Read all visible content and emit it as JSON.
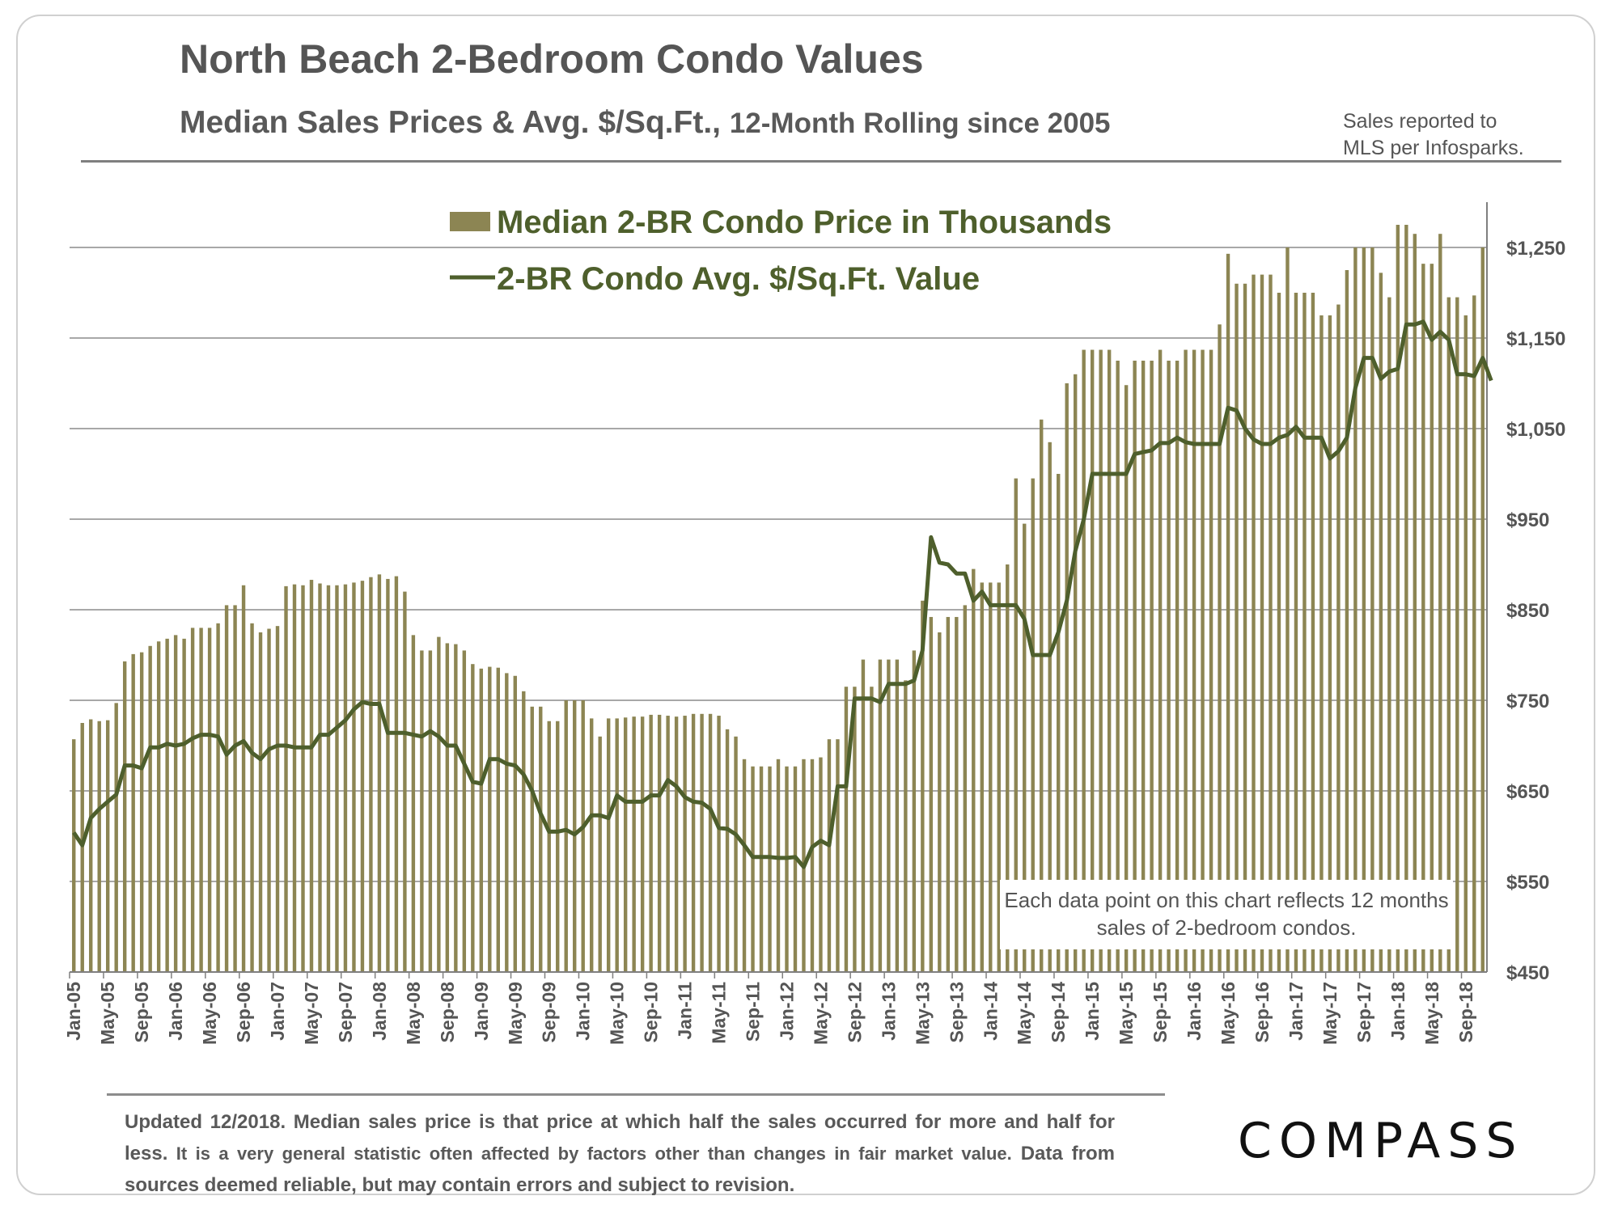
{
  "header": {
    "title": "North Beach 2-Bedroom Condo Values",
    "subtitle_main": "Median Sales Prices & Avg. $/Sq.Ft.,",
    "subtitle_small": "12-Month Rolling since 2005",
    "source_note": "Sales reported to MLS per Infosparks."
  },
  "chart_data": {
    "type": "bar+line",
    "title": "North Beach 2-Bedroom Condo Values",
    "subtitle": "Median Sales Prices & Avg. $/Sq.Ft., 12-Month Rolling since 2005",
    "ylim": [
      450,
      1300
    ],
    "yticks": [
      450,
      550,
      650,
      750,
      850,
      950,
      1050,
      1150,
      1250
    ],
    "ytick_labels": [
      "$450",
      "$550",
      "$650",
      "$750",
      "$850",
      "$950",
      "$1,050",
      "$1,150",
      "$1,250"
    ],
    "start_month": "Jan-05",
    "xtick_labels": [
      "Jan-05",
      "May-05",
      "Sep-05",
      "Jan-06",
      "May-06",
      "Sep-06",
      "Jan-07",
      "May-07",
      "Sep-07",
      "Jan-08",
      "May-08",
      "Sep-08",
      "Jan-09",
      "May-09",
      "Sep-09",
      "Jan-10",
      "May-10",
      "Sep-10",
      "Jan-11",
      "May-11",
      "Sep-11",
      "Jan-12",
      "May-12",
      "Sep-12",
      "Jan-13",
      "May-13",
      "Sep-13",
      "Jan-14",
      "May-14",
      "Sep-14",
      "Jan-15",
      "May-15",
      "Sep-15",
      "Jan-16",
      "May-16",
      "Sep-16",
      "Jan-17",
      "May-17",
      "Sep-17",
      "Jan-18",
      "May-18",
      "Sep-18"
    ],
    "legend": {
      "bar_label": "Median 2-BR Condo Price in Thousands",
      "line_label": "2-BR Condo Avg. $/Sq.Ft. Value"
    },
    "series": [
      {
        "name": "Median 2-BR Condo Price in Thousands",
        "type": "bar",
        "values": [
          707,
          725,
          729,
          727,
          728,
          747,
          793,
          801,
          803,
          810,
          815,
          818,
          822,
          818,
          830,
          830,
          830,
          835,
          855,
          855,
          877,
          835,
          825,
          829,
          832,
          876,
          878,
          877,
          883,
          879,
          877,
          877,
          878,
          880,
          882,
          886,
          889,
          884,
          887,
          870,
          822,
          805,
          805,
          820,
          813,
          812,
          805,
          790,
          785,
          787,
          786,
          780,
          777,
          760,
          743,
          743,
          727,
          727,
          750,
          750,
          750,
          730,
          710,
          730,
          730,
          731,
          732,
          732,
          734,
          734,
          733,
          732,
          733,
          735,
          735,
          735,
          733,
          718,
          710,
          685,
          677,
          677,
          677,
          685,
          677,
          677,
          685,
          685,
          687,
          707,
          707,
          765,
          765,
          795,
          765,
          795,
          795,
          795,
          772,
          805,
          860,
          842,
          825,
          842,
          842,
          855,
          895,
          880,
          880,
          880,
          900,
          995,
          945,
          995,
          1060,
          1035,
          1000,
          1100,
          1110,
          1137,
          1137,
          1137,
          1137,
          1125,
          1098,
          1125,
          1125,
          1125,
          1137,
          1125,
          1125,
          1137,
          1137,
          1137,
          1137,
          1165,
          1243,
          1210,
          1210,
          1220,
          1220,
          1220,
          1200,
          1250,
          1200,
          1200,
          1200,
          1175,
          1175,
          1187,
          1225,
          1250,
          1250,
          1250,
          1222,
          1195,
          1275,
          1275,
          1265,
          1232,
          1232,
          1265,
          1195,
          1195,
          1175,
          1197,
          1250
        ]
      },
      {
        "name": "2-BR Condo Avg. $/Sq.Ft. Value",
        "type": "line",
        "values": [
          604,
          590,
          620,
          630,
          638,
          646,
          678,
          678,
          675,
          698,
          698,
          702,
          700,
          702,
          708,
          712,
          712,
          710,
          690,
          700,
          705,
          692,
          685,
          696,
          700,
          700,
          698,
          698,
          698,
          712,
          712,
          720,
          728,
          740,
          748,
          746,
          746,
          714,
          714,
          714,
          712,
          710,
          716,
          710,
          700,
          700,
          680,
          660,
          658,
          685,
          685,
          680,
          678,
          668,
          650,
          625,
          605,
          605,
          607,
          602,
          610,
          623,
          623,
          620,
          645,
          638,
          638,
          638,
          645,
          645,
          662,
          655,
          643,
          638,
          637,
          630,
          609,
          608,
          602,
          590,
          577,
          577,
          577,
          576,
          576,
          577,
          566,
          588,
          595,
          590,
          655,
          655,
          752,
          752,
          752,
          748,
          768,
          768,
          768,
          772,
          805,
          930,
          902,
          900,
          890,
          890,
          860,
          870,
          855,
          855,
          855,
          855,
          840,
          800,
          800,
          800,
          825,
          860,
          915,
          950,
          1000,
          1000,
          1000,
          1000,
          1000,
          1022,
          1024,
          1026,
          1034,
          1034,
          1040,
          1035,
          1033,
          1033,
          1033,
          1033,
          1073,
          1070,
          1050,
          1038,
          1033,
          1033,
          1040,
          1043,
          1052,
          1040,
          1040,
          1040,
          1017,
          1025,
          1040,
          1095,
          1128,
          1128,
          1105,
          1113,
          1116,
          1165,
          1165,
          1168,
          1148,
          1157,
          1148,
          1110,
          1110,
          1108,
          1128,
          1103
        ]
      }
    ],
    "annotation": "Each data point on this chart reflects 12 months sales of 2-bedroom condos."
  },
  "footer": {
    "text_bold": "Updated 12/2018. Median sales price is that price at which half the sales occurred for more and half for less.",
    "text_small": " It is a very general statistic often affected by factors other than changes in fair market value.",
    "text_end": " Data from sources deemed reliable, but may contain errors and subject to revision.",
    "logo": "COMPASS"
  },
  "colors": {
    "bar": "#8c8553",
    "line": "#4e5f2c",
    "grid": "#8c8c8c",
    "text": "#555555"
  }
}
